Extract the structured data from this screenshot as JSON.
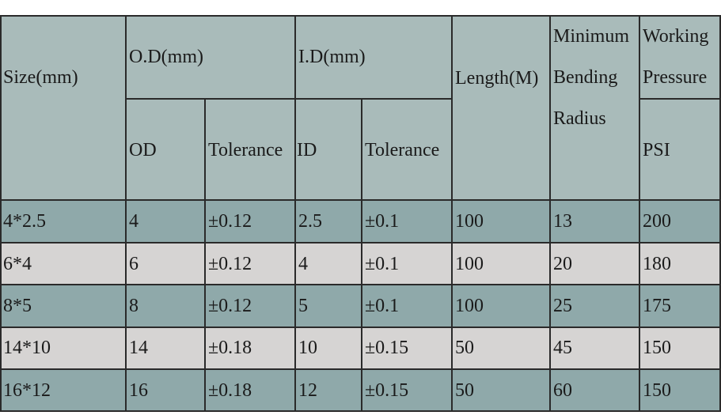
{
  "header": {
    "size": "Size(mm)",
    "od_group": "O.D(mm)",
    "id_group": "I.D(mm)",
    "length": "Length(M)",
    "min_bend_1": "Minimum",
    "min_bend_2": "Bending",
    "min_bend_3": "Radius",
    "working_1": "Working",
    "working_2": "Pressure",
    "od": "OD",
    "od_tol": "Tolerance",
    "id": "ID",
    "id_tol": "Tolerance",
    "psi": "PSI"
  },
  "rows": [
    {
      "size": "4*2.5",
      "od": "4",
      "od_tol": "±0.12",
      "id": "2.5",
      "id_tol": "±0.1",
      "length": "100",
      "radius": "13",
      "psi": "200"
    },
    {
      "size": "6*4",
      "od": "6",
      "od_tol": "±0.12",
      "id": "4",
      "id_tol": "±0.1",
      "length": "100",
      "radius": "20",
      "psi": "180"
    },
    {
      "size": "8*5",
      "od": "8",
      "od_tol": "±0.12",
      "id": "5",
      "id_tol": "±0.1",
      "length": "100",
      "radius": "25",
      "psi": "175"
    },
    {
      "size": "14*10",
      "od": "14",
      "od_tol": "±0.18",
      "id": "10",
      "id_tol": "±0.15",
      "length": "50",
      "radius": "45",
      "psi": "150"
    },
    {
      "size": "16*12",
      "od": "16",
      "od_tol": "±0.18",
      "id": "12",
      "id_tol": "±0.15",
      "length": "50",
      "radius": "60",
      "psi": "150"
    }
  ],
  "colors": {
    "header": "#a9bbba",
    "band": "#8fa9aa",
    "alt": "#d6d4d3",
    "border": "#2a2a2a"
  }
}
